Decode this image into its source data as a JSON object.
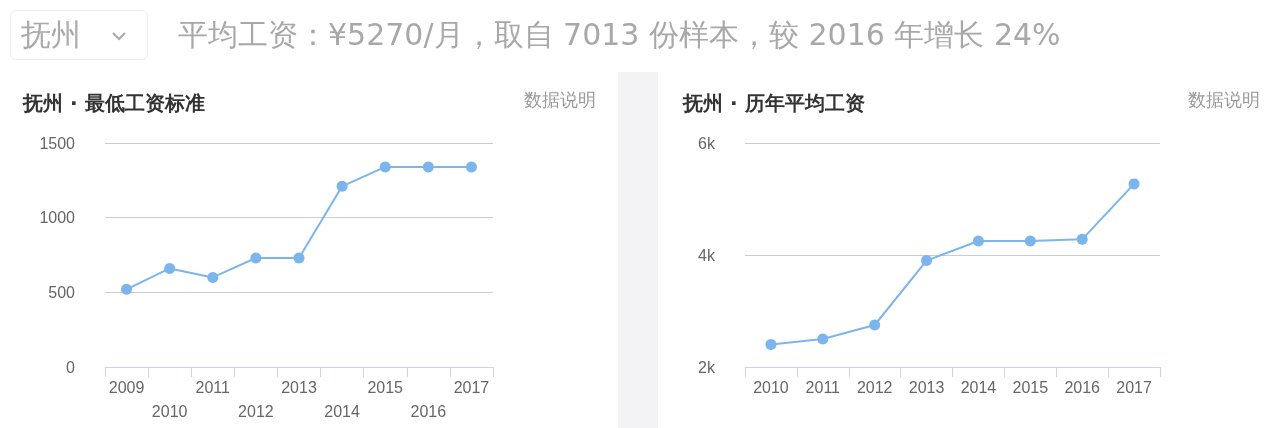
{
  "chart_data": [
    {
      "type": "line",
      "title": "抚州 · 最低工资标准",
      "annotations": [
        "抚州",
        "平均工资：¥5270/月，取自 7013 份样本，较 2016 年增长 24%",
        "数据说明"
      ],
      "categories": [
        "2009",
        "2010",
        "2011",
        "2012",
        "2013",
        "2014",
        "2015",
        "2016",
        "2017"
      ],
      "series": [
        {
          "color": "#7cb5ec",
          "values": [
            520,
            660,
            600,
            730,
            730,
            1210,
            1340,
            1340,
            1340
          ]
        }
      ],
      "ylim": [
        0,
        1500
      ],
      "yticks": [
        0,
        500,
        1000,
        1500
      ],
      "grid": "y",
      "marker": "circle",
      "line_style": "solid"
    },
    {
      "type": "line",
      "title": "抚州 · 历年平均工资",
      "annotations": [
        "数据说明"
      ],
      "categories": [
        "2010",
        "2011",
        "2012",
        "2013",
        "2014",
        "2015",
        "2016",
        "2017"
      ],
      "series": [
        {
          "color": "#7cb5ec",
          "values": [
            2400,
            2500,
            2750,
            3900,
            4250,
            4250,
            4280,
            5270
          ]
        }
      ],
      "ylim": [
        2000,
        6000
      ],
      "yticks": [
        {
          "value": 2000,
          "label": "2k"
        },
        {
          "value": 4000,
          "label": "4k"
        },
        {
          "value": 6000,
          "label": "6k"
        }
      ],
      "grid": "y",
      "marker": "circle",
      "line_style": "solid"
    }
  ]
}
